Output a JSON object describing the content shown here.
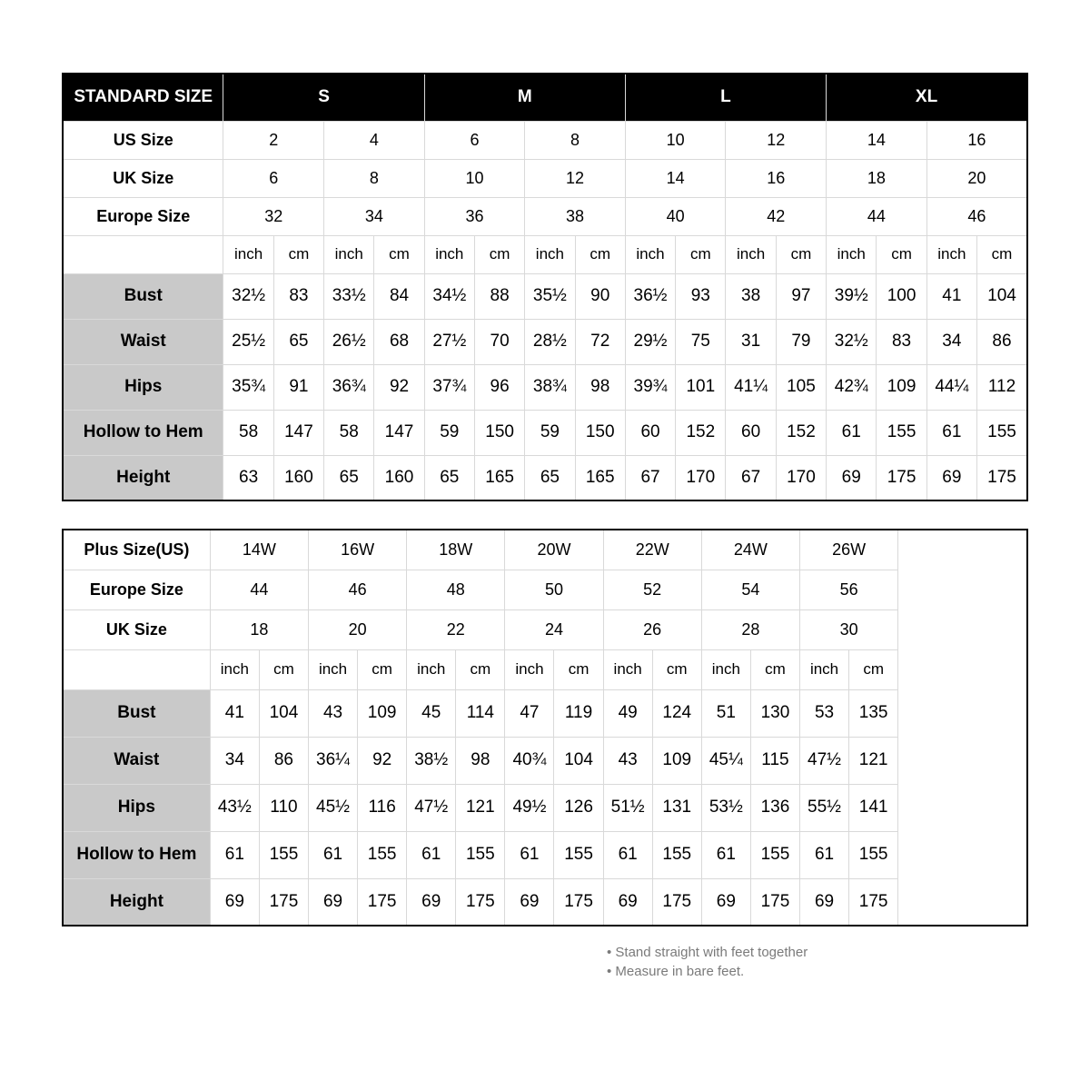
{
  "standard": {
    "header_label": "STANDARD SIZE",
    "size_groups": [
      "S",
      "M",
      "L",
      "XL"
    ],
    "size_rows": [
      {
        "label": "US Size",
        "values": [
          "2",
          "4",
          "6",
          "8",
          "10",
          "12",
          "14",
          "16"
        ]
      },
      {
        "label": "UK Size",
        "values": [
          "6",
          "8",
          "10",
          "12",
          "14",
          "16",
          "18",
          "20"
        ]
      },
      {
        "label": "Europe Size",
        "values": [
          "32",
          "34",
          "36",
          "38",
          "40",
          "42",
          "44",
          "46"
        ]
      }
    ],
    "unit_labels": [
      "inch",
      "cm"
    ],
    "measurements": [
      {
        "label": "Bust",
        "values": [
          "32½",
          "83",
          "33½",
          "84",
          "34½",
          "88",
          "35½",
          "90",
          "36½",
          "93",
          "38",
          "97",
          "39½",
          "100",
          "41",
          "104"
        ]
      },
      {
        "label": "Waist",
        "values": [
          "25½",
          "65",
          "26½",
          "68",
          "27½",
          "70",
          "28½",
          "72",
          "29½",
          "75",
          "31",
          "79",
          "32½",
          "83",
          "34",
          "86"
        ]
      },
      {
        "label": "Hips",
        "values": [
          "35¾",
          "91",
          "36¾",
          "92",
          "37¾",
          "96",
          "38¾",
          "98",
          "39¾",
          "101",
          "41¼",
          "105",
          "42¾",
          "109",
          "44¼",
          "112"
        ]
      },
      {
        "label": "Hollow to Hem",
        "values": [
          "58",
          "147",
          "58",
          "147",
          "59",
          "150",
          "59",
          "150",
          "60",
          "152",
          "60",
          "152",
          "61",
          "155",
          "61",
          "155"
        ]
      },
      {
        "label": "Height",
        "values": [
          "63",
          "160",
          "65",
          "160",
          "65",
          "165",
          "65",
          "165",
          "67",
          "170",
          "67",
          "170",
          "69",
          "175",
          "69",
          "175"
        ]
      }
    ]
  },
  "plus": {
    "size_rows": [
      {
        "label": "Plus Size(US)",
        "values": [
          "14W",
          "16W",
          "18W",
          "20W",
          "22W",
          "24W",
          "26W"
        ]
      },
      {
        "label": "Europe Size",
        "values": [
          "44",
          "46",
          "48",
          "50",
          "52",
          "54",
          "56"
        ]
      },
      {
        "label": "UK Size",
        "values": [
          "18",
          "20",
          "22",
          "24",
          "26",
          "28",
          "30"
        ]
      }
    ],
    "unit_labels": [
      "inch",
      "cm"
    ],
    "measurements": [
      {
        "label": "Bust",
        "values": [
          "41",
          "104",
          "43",
          "109",
          "45",
          "114",
          "47",
          "119",
          "49",
          "124",
          "51",
          "130",
          "53",
          "135"
        ]
      },
      {
        "label": "Waist",
        "values": [
          "34",
          "86",
          "36¼",
          "92",
          "38½",
          "98",
          "40¾",
          "104",
          "43",
          "109",
          "45¼",
          "115",
          "47½",
          "121"
        ]
      },
      {
        "label": "Hips",
        "values": [
          "43½",
          "110",
          "45½",
          "116",
          "47½",
          "121",
          "49½",
          "126",
          "51½",
          "131",
          "53½",
          "136",
          "55½",
          "141"
        ]
      },
      {
        "label": "Hollow to Hem",
        "values": [
          "61",
          "155",
          "61",
          "155",
          "61",
          "155",
          "61",
          "155",
          "61",
          "155",
          "61",
          "155",
          "61",
          "155"
        ]
      },
      {
        "label": "Height",
        "values": [
          "69",
          "175",
          "69",
          "175",
          "69",
          "175",
          "69",
          "175",
          "69",
          "175",
          "69",
          "175",
          "69",
          "175"
        ]
      }
    ]
  },
  "notes": [
    "Stand straight with feet together",
    "Measure in bare feet."
  ],
  "colors": {
    "header_bg": "#000000",
    "header_fg": "#ffffff",
    "border": "#d9d9d9",
    "outer_border": "#000000",
    "measure_label_bg": "#c9c9c9",
    "bg": "#ffffff",
    "notes_fg": "#7a7a7a"
  }
}
